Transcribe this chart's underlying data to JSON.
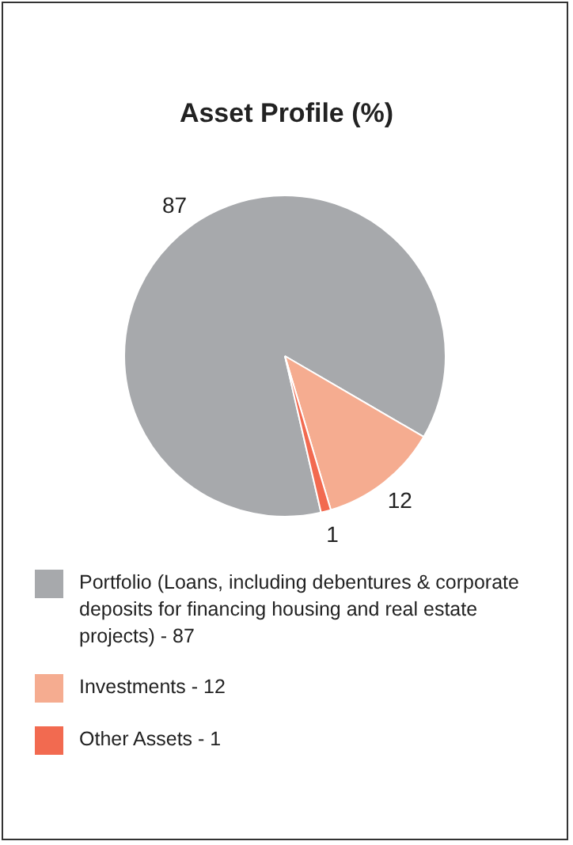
{
  "chart_data": {
    "type": "pie",
    "title": "Asset Profile (%)",
    "categories": [
      "Portfolio (Loans, including debentures & corporate deposits for financing housing and real estate projects) - 87",
      "Investments - 12",
      "Other Assets - 1"
    ],
    "values": [
      87,
      12,
      1
    ],
    "colors": [
      "#a7a9ac",
      "#f5ac90",
      "#f26a50"
    ],
    "data_labels": true,
    "legend": "bottom"
  }
}
